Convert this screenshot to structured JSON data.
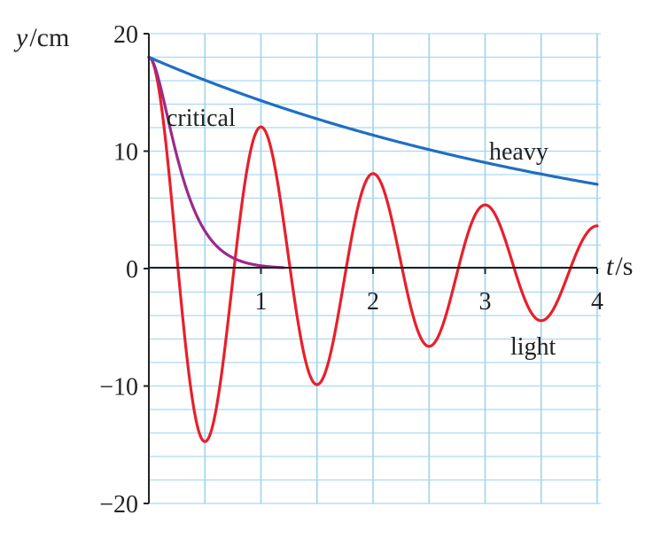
{
  "chart_data": {
    "type": "line",
    "title": "",
    "xlabel_var": "t",
    "xlabel_unit": "s",
    "ylabel_var": "y",
    "ylabel_unit": "cm",
    "xlim": [
      0,
      4
    ],
    "ylim": [
      -20,
      20
    ],
    "x_ticks": [
      1,
      2,
      3,
      4
    ],
    "x_tick_labels": [
      "1",
      "2",
      "3",
      "4"
    ],
    "y_ticks": [
      20,
      10,
      0,
      -10,
      -20
    ],
    "y_tick_labels": [
      "20",
      "10",
      "0",
      "−10",
      "−20"
    ],
    "grid": true,
    "series": [
      {
        "name": "heavy",
        "color": "#1f6fc2",
        "x": [
          0,
          0.25,
          0.5,
          0.75,
          1,
          1.25,
          1.5,
          1.75,
          2,
          2.25,
          2.5,
          2.75,
          3,
          3.25,
          3.5,
          3.75,
          4
        ],
        "y": [
          18,
          17.0,
          16.0,
          15.1,
          14.2,
          13.4,
          12.6,
          11.9,
          11.2,
          10.6,
          10.0,
          9.4,
          8.9,
          8.4,
          7.9,
          7.4,
          7.0
        ]
      },
      {
        "name": "critical",
        "color": "#9b2a8a",
        "x": [
          0,
          0.1,
          0.2,
          0.3,
          0.4,
          0.5,
          0.6,
          0.7,
          0.8,
          0.9,
          1.0,
          1.1,
          1.2
        ],
        "y": [
          18,
          13.9,
          9.5,
          6.0,
          3.6,
          2.1,
          1.2,
          0.65,
          0.35,
          0.18,
          0.09,
          0.04,
          0.02
        ]
      },
      {
        "name": "light",
        "color": "#e8202a",
        "x": [
          0,
          0.5,
          1.0,
          1.5,
          2.0,
          2.5,
          3.0,
          3.5,
          4.0
        ],
        "y": [
          18,
          -14.9,
          12,
          -9.9,
          8.1,
          -6.6,
          5.4,
          -4.4,
          3.6
        ],
        "annotation": "light"
      }
    ],
    "annotations": [
      "critical",
      "heavy",
      "light"
    ]
  }
}
